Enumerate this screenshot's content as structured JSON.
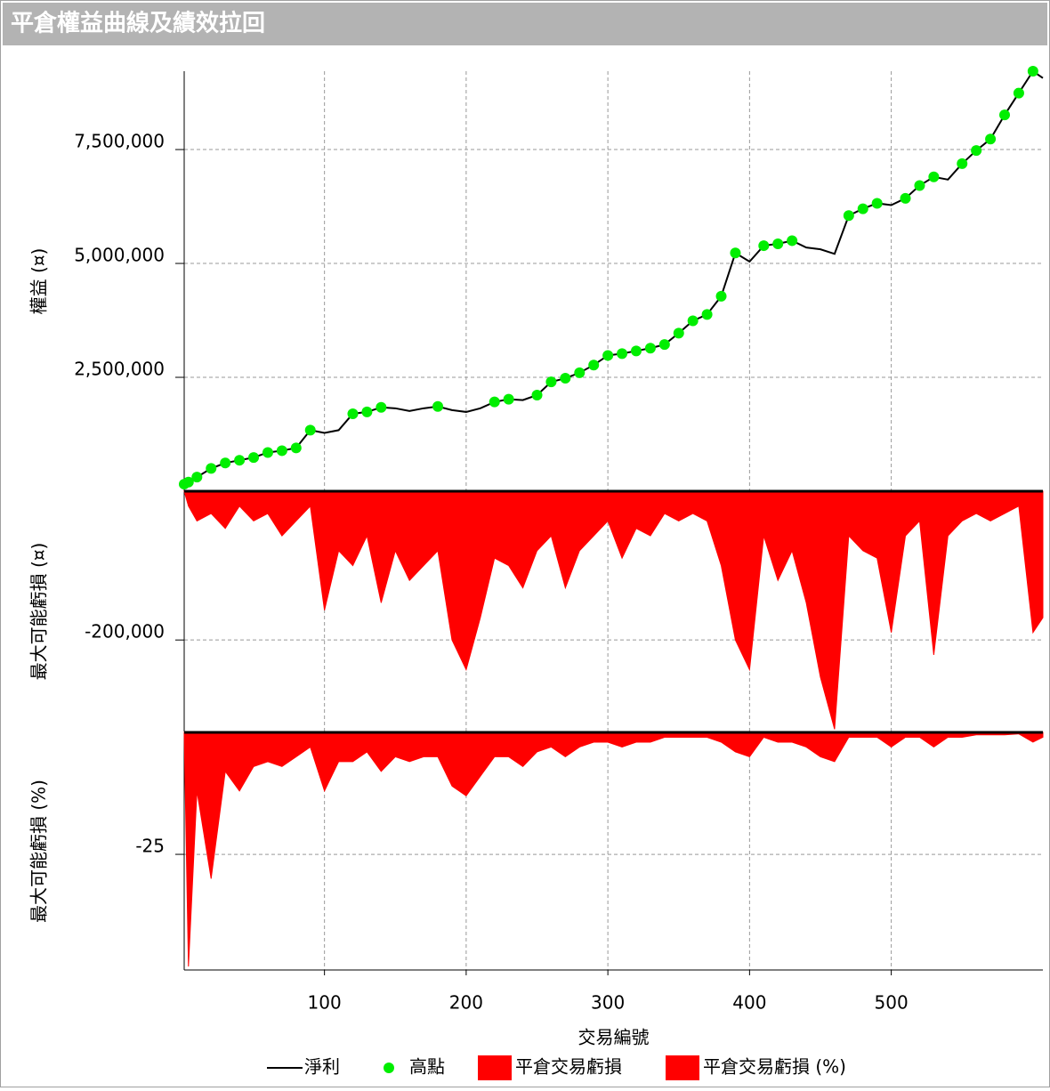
{
  "title": "平倉權益曲線及績效拉回",
  "chart_data": [
    {
      "type": "line",
      "ylabel": "權益 (¤)",
      "x": [
        1,
        4,
        10,
        20,
        30,
        40,
        50,
        60,
        70,
        80,
        90,
        100,
        110,
        120,
        130,
        140,
        150,
        160,
        170,
        180,
        190,
        200,
        210,
        220,
        230,
        240,
        250,
        260,
        270,
        280,
        290,
        300,
        310,
        320,
        330,
        340,
        350,
        360,
        370,
        380,
        390,
        400,
        410,
        420,
        430,
        440,
        450,
        460,
        470,
        480,
        490,
        500,
        510,
        520,
        530,
        540,
        550,
        560,
        570,
        580,
        590,
        600,
        607
      ],
      "xlim": [
        1,
        607
      ],
      "xticks": [
        100,
        200,
        300,
        400,
        500
      ],
      "ylim": [
        0,
        9220000
      ],
      "yticks": [
        {
          "value": 2500000,
          "label": "2,500,000"
        },
        {
          "value": 5000000,
          "label": "5,000,000"
        },
        {
          "value": 7500000,
          "label": "7,500,000"
        }
      ],
      "grid": true,
      "series": [
        {
          "name": "淨利",
          "color": "#000000",
          "values": [
            155000,
            200000,
            310000,
            500000,
            620000,
            680000,
            740000,
            850000,
            890000,
            950000,
            1340000,
            1280000,
            1340000,
            1700000,
            1740000,
            1840000,
            1820000,
            1760000,
            1820000,
            1860000,
            1780000,
            1740000,
            1820000,
            1960000,
            2020000,
            2000000,
            2110000,
            2400000,
            2480000,
            2600000,
            2770000,
            2980000,
            3020000,
            3080000,
            3140000,
            3220000,
            3470000,
            3740000,
            3880000,
            4280000,
            5230000,
            5040000,
            5390000,
            5430000,
            5500000,
            5350000,
            5310000,
            5210000,
            6050000,
            6200000,
            6320000,
            6280000,
            6430000,
            6710000,
            6900000,
            6840000,
            7190000,
            7480000,
            7730000,
            8260000,
            8740000,
            9220000,
            9070000
          ]
        },
        {
          "name": "高點",
          "color": "#00ee00",
          "type": "scatter",
          "values": [
            155000,
            200000,
            310000,
            500000,
            620000,
            680000,
            740000,
            850000,
            890000,
            950000,
            1340000,
            null,
            null,
            1700000,
            1740000,
            1840000,
            null,
            null,
            null,
            1860000,
            null,
            null,
            null,
            1960000,
            2020000,
            null,
            2110000,
            2400000,
            2480000,
            2600000,
            2770000,
            2980000,
            3020000,
            3080000,
            3140000,
            3220000,
            3470000,
            3740000,
            3880000,
            4280000,
            5230000,
            null,
            5390000,
            5430000,
            5500000,
            null,
            null,
            null,
            6050000,
            6200000,
            6320000,
            null,
            6430000,
            6710000,
            6900000,
            null,
            7190000,
            7480000,
            7730000,
            8260000,
            8740000,
            9220000,
            null
          ]
        }
      ]
    },
    {
      "type": "area",
      "ylabel": "最大可能虧損 (¤)",
      "x": [
        1,
        4,
        10,
        20,
        30,
        40,
        50,
        60,
        70,
        80,
        90,
        100,
        110,
        120,
        130,
        140,
        150,
        160,
        170,
        180,
        190,
        200,
        210,
        220,
        230,
        240,
        250,
        260,
        270,
        280,
        290,
        300,
        310,
        320,
        330,
        340,
        350,
        360,
        370,
        380,
        390,
        400,
        410,
        420,
        430,
        440,
        450,
        460,
        470,
        480,
        490,
        500,
        510,
        520,
        530,
        540,
        550,
        560,
        570,
        580,
        590,
        600,
        607
      ],
      "xlim": [
        1,
        607
      ],
      "xticks": [
        100,
        200,
        300,
        400,
        500
      ],
      "ylim": [
        -323000,
        0
      ],
      "yticks": [
        {
          "value": -200000,
          "label": "-200,000"
        }
      ],
      "grid": true,
      "series": [
        {
          "name": "平倉交易虧損",
          "color": "#ff0000",
          "values": [
            0,
            -20000,
            -40000,
            -30000,
            -50000,
            -20000,
            -40000,
            -30000,
            -60000,
            -40000,
            -20000,
            -160000,
            -80000,
            -100000,
            -60000,
            -150000,
            -80000,
            -120000,
            -100000,
            -80000,
            -200000,
            -240000,
            -170000,
            -90000,
            -100000,
            -130000,
            -80000,
            -60000,
            -130000,
            -80000,
            -60000,
            -40000,
            -90000,
            -50000,
            -60000,
            -30000,
            -40000,
            -30000,
            -40000,
            -100000,
            -200000,
            -240000,
            -60000,
            -120000,
            -80000,
            -150000,
            -250000,
            -320000,
            -60000,
            -80000,
            -90000,
            -190000,
            -60000,
            -40000,
            -220000,
            -60000,
            -40000,
            -30000,
            -40000,
            -30000,
            -20000,
            -190000,
            -170000
          ]
        }
      ]
    },
    {
      "type": "area",
      "ylabel": "最大可能虧損 (%)",
      "xlabel": "交易編號",
      "x": [
        1,
        4,
        10,
        20,
        30,
        40,
        50,
        60,
        70,
        80,
        90,
        100,
        110,
        120,
        130,
        140,
        150,
        160,
        170,
        180,
        190,
        200,
        210,
        220,
        230,
        240,
        250,
        260,
        270,
        280,
        290,
        300,
        310,
        320,
        330,
        340,
        350,
        360,
        370,
        380,
        390,
        400,
        410,
        420,
        430,
        440,
        450,
        460,
        470,
        480,
        490,
        500,
        510,
        520,
        530,
        540,
        550,
        560,
        570,
        580,
        590,
        600,
        607
      ],
      "xlim": [
        1,
        607
      ],
      "xticks": [
        100,
        200,
        300,
        400,
        500
      ],
      "ylim": [
        -48.7,
        0
      ],
      "yticks": [
        -25
      ],
      "grid": true,
      "series": [
        {
          "name": "平倉交易虧損 (%)",
          "color": "#ff0000",
          "values": [
            0,
            -48,
            -12,
            -30,
            -8,
            -12,
            -7,
            -6,
            -7,
            -5,
            -3,
            -12,
            -6,
            -6,
            -4,
            -8,
            -5,
            -6,
            -5,
            -5,
            -11,
            -13,
            -9,
            -5,
            -5,
            -7,
            -4,
            -3,
            -5,
            -3,
            -2,
            -2,
            -3,
            -2,
            -2,
            -1,
            -1,
            -1,
            -1,
            -2,
            -4,
            -5,
            -1,
            -2,
            -2,
            -3,
            -5,
            -6,
            -1,
            -1,
            -1,
            -3,
            -1,
            -1,
            -3,
            -1,
            -1,
            -0.5,
            -0.5,
            -0.5,
            -0.3,
            -2,
            -1
          ]
        }
      ]
    }
  ]
}
